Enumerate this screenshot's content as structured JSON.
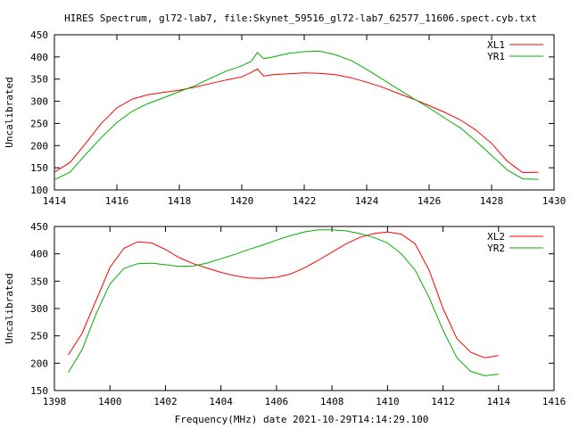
{
  "title": "HIRES Spectrum, gl72-lab7, file:Skynet_59516_gl72-lab7_62577_11606.spect.cyb.txt",
  "xlabel": "Frequency(MHz) date 2021-10-29T14:14:29.100",
  "chart_data": [
    {
      "type": "line",
      "ylabel": "Uncalibrated",
      "xlim": [
        1414,
        1430
      ],
      "ylim": [
        100,
        450
      ],
      "xticks": [
        1414,
        1416,
        1418,
        1420,
        1422,
        1424,
        1426,
        1428,
        1430
      ],
      "yticks": [
        100,
        150,
        200,
        250,
        300,
        350,
        400,
        450
      ],
      "legend": "top-right",
      "series": [
        {
          "name": "XL1",
          "color": "#ff0000",
          "x": [
            1414.0,
            1414.5,
            1415.0,
            1415.5,
            1416.0,
            1416.5,
            1417.0,
            1417.5,
            1418.0,
            1418.5,
            1419.0,
            1419.5,
            1420.0,
            1420.3,
            1420.5,
            1420.7,
            1421.0,
            1421.5,
            1422.0,
            1422.5,
            1423.0,
            1423.5,
            1424.0,
            1424.5,
            1425.0,
            1425.5,
            1426.0,
            1426.5,
            1427.0,
            1427.5,
            1428.0,
            1428.5,
            1429.0,
            1429.5
          ],
          "values": [
            140,
            162,
            205,
            250,
            285,
            305,
            315,
            320,
            325,
            332,
            340,
            348,
            355,
            365,
            373,
            357,
            360,
            362,
            364,
            363,
            360,
            353,
            343,
            332,
            318,
            305,
            290,
            275,
            258,
            235,
            205,
            165,
            139,
            140
          ]
        },
        {
          "name": "YR1",
          "color": "#00b000",
          "x": [
            1414.0,
            1414.5,
            1415.0,
            1415.5,
            1416.0,
            1416.5,
            1417.0,
            1417.5,
            1418.0,
            1418.5,
            1419.0,
            1419.5,
            1420.0,
            1420.3,
            1420.5,
            1420.7,
            1421.0,
            1421.5,
            1422.0,
            1422.5,
            1423.0,
            1423.5,
            1424.0,
            1424.5,
            1425.0,
            1425.5,
            1426.0,
            1426.5,
            1427.0,
            1427.5,
            1428.0,
            1428.5,
            1429.0,
            1429.5
          ],
          "values": [
            123,
            140,
            180,
            218,
            252,
            278,
            295,
            308,
            322,
            335,
            352,
            368,
            380,
            390,
            410,
            396,
            400,
            408,
            412,
            413,
            405,
            392,
            372,
            350,
            328,
            306,
            285,
            262,
            240,
            210,
            178,
            145,
            125,
            124
          ]
        }
      ]
    },
    {
      "type": "line",
      "ylabel": "Uncalibrated",
      "xlim": [
        1398,
        1416
      ],
      "ylim": [
        150,
        450
      ],
      "xticks": [
        1398,
        1400,
        1402,
        1404,
        1406,
        1408,
        1410,
        1412,
        1414,
        1416
      ],
      "yticks": [
        150,
        200,
        250,
        300,
        350,
        400,
        450
      ],
      "legend": "top-right",
      "series": [
        {
          "name": "XL2",
          "color": "#ff0000",
          "x": [
            1398.5,
            1399.0,
            1399.5,
            1400.0,
            1400.5,
            1401.0,
            1401.5,
            1402.0,
            1402.5,
            1403.0,
            1403.5,
            1404.0,
            1404.5,
            1405.0,
            1405.5,
            1406.0,
            1406.5,
            1407.0,
            1407.5,
            1408.0,
            1408.5,
            1409.0,
            1409.5,
            1410.0,
            1410.5,
            1411.0,
            1411.5,
            1412.0,
            1412.5,
            1413.0,
            1413.5,
            1414.0
          ],
          "values": [
            215,
            255,
            315,
            375,
            410,
            422,
            420,
            408,
            393,
            382,
            374,
            366,
            360,
            356,
            355,
            357,
            363,
            374,
            388,
            403,
            418,
            430,
            437,
            440,
            436,
            418,
            370,
            300,
            245,
            220,
            210,
            214
          ]
        },
        {
          "name": "YR2",
          "color": "#00b000",
          "x": [
            1398.5,
            1399.0,
            1399.5,
            1400.0,
            1400.5,
            1401.0,
            1401.5,
            1402.0,
            1402.5,
            1403.0,
            1403.5,
            1404.0,
            1404.5,
            1405.0,
            1405.5,
            1406.0,
            1406.5,
            1407.0,
            1407.5,
            1408.0,
            1408.5,
            1409.0,
            1409.5,
            1410.0,
            1410.5,
            1411.0,
            1411.5,
            1412.0,
            1412.5,
            1413.0,
            1413.5,
            1414.0
          ],
          "values": [
            183,
            225,
            290,
            345,
            373,
            382,
            383,
            380,
            377,
            378,
            383,
            391,
            399,
            408,
            416,
            425,
            433,
            440,
            444,
            444,
            442,
            437,
            430,
            420,
            400,
            370,
            320,
            260,
            210,
            185,
            177,
            180
          ]
        }
      ]
    }
  ]
}
